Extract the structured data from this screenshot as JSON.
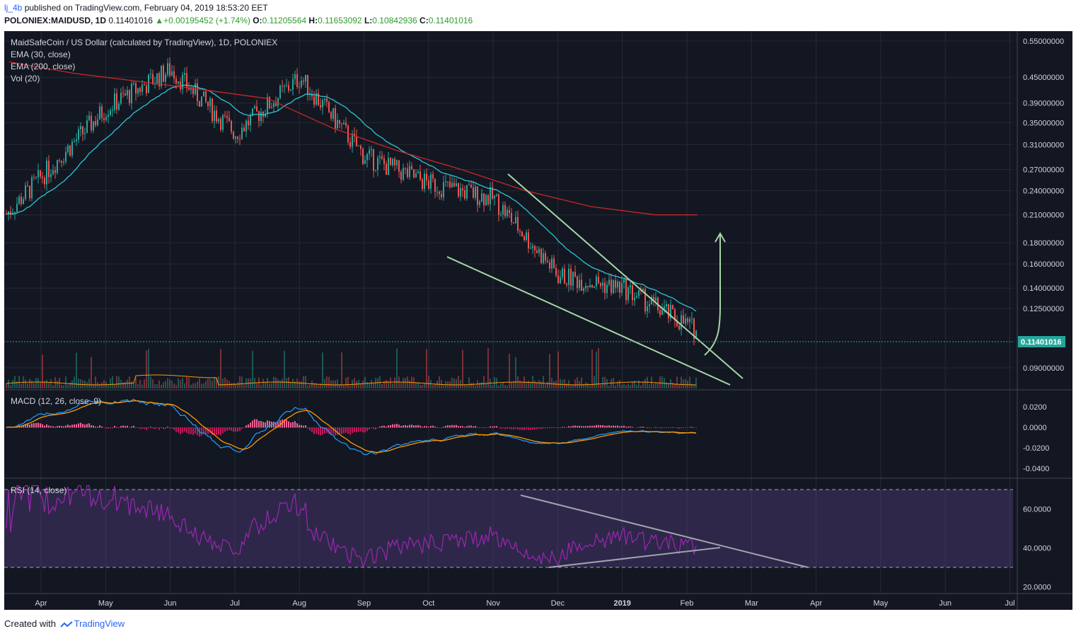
{
  "header": {
    "author": "lj_4b",
    "published_text": "published on TradingView.com, February 04, 2019 18:53:20 EET",
    "symbol": "POLONIEX:MAIDUSD, 1D",
    "last": "0.11401016",
    "change": "▲+0.00195452 (+1.74%)",
    "o_label": "O:",
    "o": "0.11205564",
    "h_label": "H:",
    "h": "0.11653092",
    "l_label": "L:",
    "l": "0.10842936",
    "c_label": "C:",
    "c": "0.11401016"
  },
  "legend": {
    "title": "MaidSafeCoin / US Dollar (calculated by TradingView), 1D, POLONIEX",
    "ema30": "EMA (30, close)",
    "ema200": "EMA (200, close)",
    "vol": "Vol (20)",
    "macd": "MACD (12, 26, close, 9)",
    "rsi": "RSI (14, close)"
  },
  "price_badge": "0.11401016",
  "footer": {
    "created_with": "Created with",
    "brand": "TradingView"
  },
  "colors": {
    "background": "#131722",
    "up": "#26a69a",
    "down": "#ef5350",
    "ema30": "#2ec5d3",
    "ema200": "#c62828",
    "trendline": "#a5d6a7",
    "macd": "#2196f3",
    "signal": "#ff9800",
    "rsi": "#9c27b0",
    "badge": "#26a69a"
  },
  "chart_data": {
    "type": "candlestick",
    "title": "MaidSafeCoin / US Dollar (calculated by TradingView), 1D, POLONIEX",
    "x_ticks": [
      "Apr",
      "May",
      "Jun",
      "Jul",
      "Aug",
      "Sep",
      "Oct",
      "Nov",
      "Dec",
      "2019",
      "Feb",
      "Mar",
      "Apr",
      "May",
      "Jun",
      "Jul"
    ],
    "price_axis": {
      "scale": "log",
      "ticks": [
        "0.55000000",
        "0.45000000",
        "0.39000000",
        "0.35000000",
        "0.31000000",
        "0.27000000",
        "0.24000000",
        "0.21000000",
        "0.18000000",
        "0.16000000",
        "0.14000000",
        "0.12500000",
        "0.09000000"
      ],
      "values": [
        0.55,
        0.45,
        0.39,
        0.35,
        0.31,
        0.27,
        0.24,
        0.21,
        0.18,
        0.16,
        0.14,
        0.125,
        0.09
      ],
      "range": [
        0.08,
        0.575
      ]
    },
    "price_series_approx": {
      "months": [
        "Apr",
        "May",
        "Jun",
        "Jul",
        "Aug",
        "Sep",
        "Oct",
        "Nov",
        "Dec",
        "2019",
        "Feb"
      ],
      "close": [
        0.26,
        0.38,
        0.47,
        0.33,
        0.45,
        0.29,
        0.25,
        0.23,
        0.15,
        0.14,
        0.114
      ]
    },
    "ema30_approx": [
      0.3,
      0.36,
      0.44,
      0.34,
      0.4,
      0.3,
      0.25,
      0.24,
      0.17,
      0.145,
      0.12
    ],
    "ema200_approx": [
      0.49,
      0.46,
      0.44,
      0.42,
      0.4,
      0.34,
      0.3,
      0.27,
      0.24,
      0.22,
      0.21
    ],
    "last_price": 0.11401016,
    "macd_axis": {
      "ticks": [
        "0.0200",
        "0.0000",
        "-0.0200",
        "-0.0400"
      ],
      "values": [
        0.02,
        0.0,
        -0.02,
        -0.04
      ]
    },
    "rsi_axis": {
      "ticks": [
        "60.0000",
        "40.0000",
        "20.0000"
      ],
      "values": [
        60,
        40,
        20
      ],
      "bands": [
        70,
        30
      ]
    }
  }
}
